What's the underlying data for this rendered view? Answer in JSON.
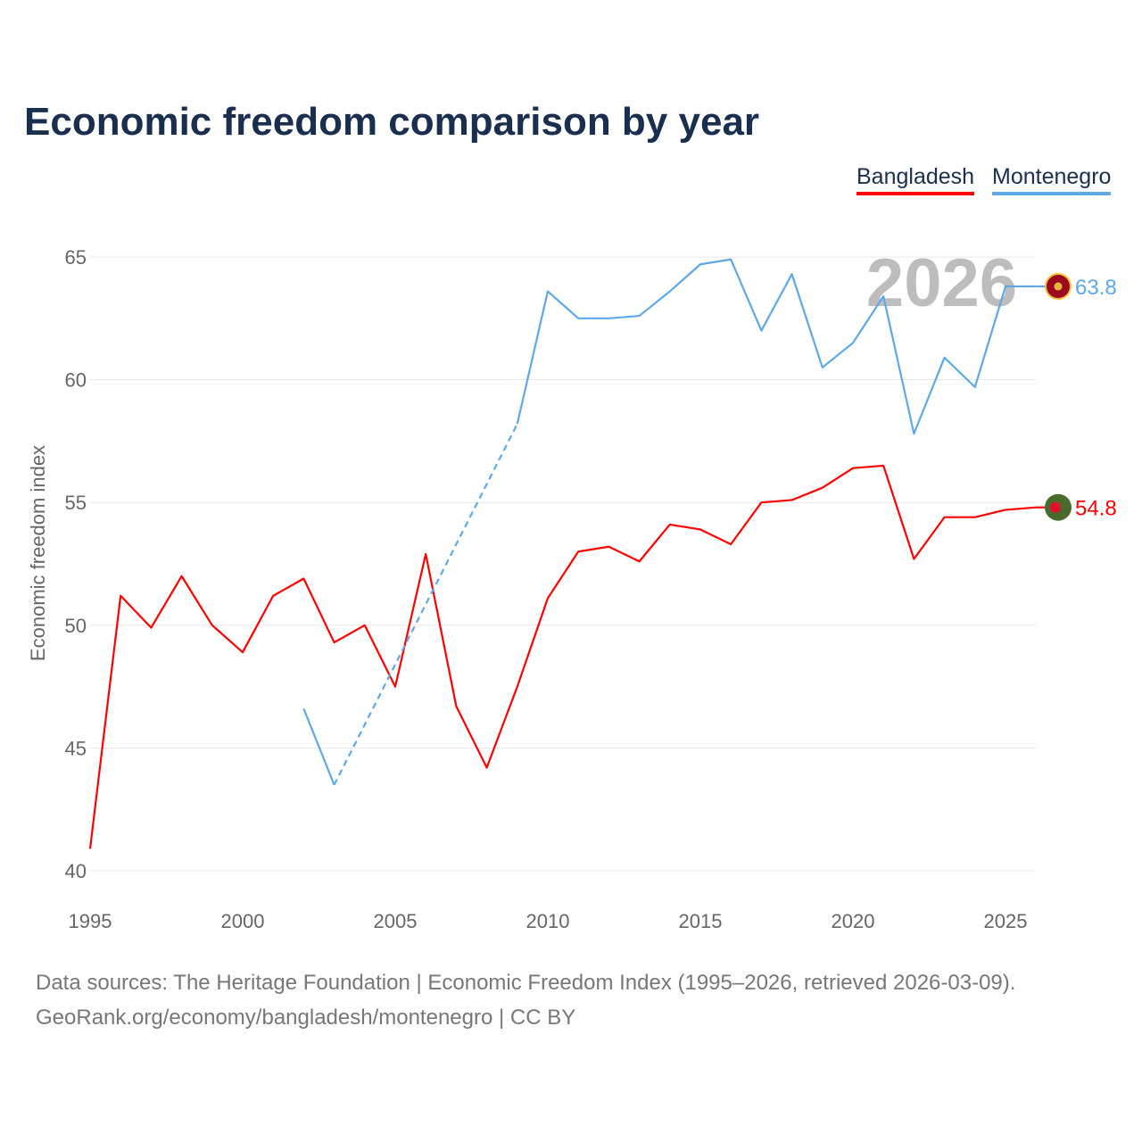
{
  "chart_data": {
    "type": "line",
    "title": "Economic freedom comparison by year",
    "xlabel": "",
    "ylabel": "Economic freedom index",
    "xlim": [
      1995,
      2026
    ],
    "ylim": [
      40,
      66
    ],
    "yticks": [
      40,
      45,
      50,
      55,
      60,
      65
    ],
    "xticks": [
      1995,
      2000,
      2005,
      2010,
      2015,
      2020,
      2025
    ],
    "grid": true,
    "legend_position": "top-right",
    "year_watermark": "2026",
    "series": [
      {
        "name": "Bangladesh",
        "color": "#ff0000",
        "end_label": "54.8",
        "x": [
          1995,
          1996,
          1997,
          1998,
          1999,
          2000,
          2001,
          2002,
          2003,
          2004,
          2005,
          2006,
          2007,
          2008,
          2009,
          2010,
          2011,
          2012,
          2013,
          2014,
          2015,
          2016,
          2017,
          2018,
          2019,
          2020,
          2021,
          2022,
          2023,
          2024,
          2025,
          2026
        ],
        "values": [
          40.9,
          51.2,
          49.9,
          52.0,
          50.0,
          48.9,
          51.2,
          51.9,
          49.3,
          50.0,
          47.5,
          52.9,
          46.7,
          44.2,
          47.5,
          51.1,
          53.0,
          53.2,
          52.6,
          54.1,
          53.9,
          53.3,
          55.0,
          55.1,
          55.6,
          56.4,
          56.5,
          52.7,
          54.4,
          54.4,
          54.7,
          54.8
        ]
      },
      {
        "name": "Montenegro",
        "color": "#5ea8e8",
        "end_label": "63.8",
        "x": [
          2002,
          2003,
          2009,
          2010,
          2011,
          2012,
          2013,
          2014,
          2015,
          2016,
          2017,
          2018,
          2019,
          2020,
          2021,
          2022,
          2023,
          2024,
          2025,
          2026
        ],
        "values": [
          46.6,
          43.5,
          58.2,
          63.6,
          62.5,
          62.5,
          62.6,
          63.6,
          64.7,
          64.9,
          62.0,
          64.3,
          60.5,
          61.5,
          63.4,
          57.8,
          60.9,
          59.7,
          63.8,
          63.8
        ],
        "gap_interpolated": [
          2003,
          2009
        ]
      }
    ]
  },
  "footer": {
    "line1": "Data sources: The Heritage Foundation | Economic Freedom Index (1995–2026, retrieved 2026-03-09).",
    "line2": "GeoRank.org/economy/bangladesh/montenegro | CC BY"
  }
}
